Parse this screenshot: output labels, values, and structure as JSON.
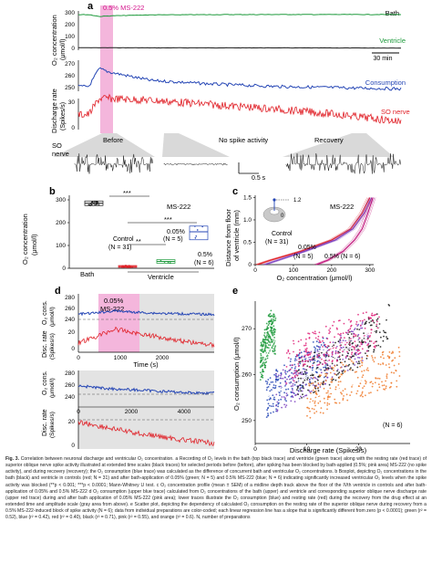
{
  "panel_a": {
    "letter": "a",
    "drug_label": "0.5% MS-222",
    "bath_label": "Bath",
    "ventricle_label": "Ventricle",
    "consumption_label": "Consumption",
    "nerve_label": "SO nerve",
    "ylabel_o2": "O₂ concentration",
    "ylabel_o2_unit": "(μmol/l)",
    "ylabel_rate": "Discharge rate",
    "ylabel_rate_unit": "(Spikes/s)",
    "scale_time": "30 min",
    "o2_ticks": [
      "300",
      "200",
      "100",
      "0"
    ],
    "cons_ticks": [
      "270",
      "260",
      "250"
    ],
    "rate_ticks": [
      "30",
      "0"
    ],
    "phase_before": "Before",
    "phase_none": "No spike activity",
    "phase_recovery": "Recovery",
    "so_label_1": "SO",
    "so_label_2": "nerve",
    "scale_trace": "0.5 s"
  },
  "panel_b": {
    "letter": "b",
    "ylabel": "O₂ concentration",
    "ylabel_unit": "(μmol/l)",
    "title": "MS-222",
    "ticks": [
      "300",
      "200",
      "100",
      "0"
    ],
    "sig_top": "***",
    "sig_mid": "***",
    "sig_low": "**",
    "control_label": "Control",
    "control_n": "(N = 31)",
    "p005_label": "0.05%",
    "p005_n": "(N = 5)",
    "p05_label": "0.5%",
    "p05_n": "(N = 6)",
    "x_bath": "Bath",
    "x_ventricle": "Ventricle"
  },
  "panel_c": {
    "letter": "c",
    "ylabel1": "Distance from floor",
    "ylabel2": "of ventricle (mm)",
    "title": "MS-222",
    "ticks_y": [
      "1.5",
      "1.0",
      "0.5",
      "0"
    ],
    "ticks_x": [
      "0",
      "100",
      "200",
      "300"
    ],
    "xlabel": "O₂ concentration (μmol/l)",
    "inset_dist": "1.2",
    "inset_zero": "0",
    "control_label": "Control",
    "control_n": "(N = 31)",
    "p005_label": "0.05%",
    "p005_n": "(N = 5)",
    "p05_label": "0.5% (N = 6)"
  },
  "panel_d": {
    "letter": "d",
    "top_drug1": "0.05%",
    "top_drug2": "MS-222",
    "ylabel_cons": "O₂ cons.",
    "ylabel_cons_unit": "(μmol/l)",
    "ylabel_disc": "Disc. rate",
    "ylabel_disc_unit": "(Spikes/s)",
    "cons_ticks": [
      "280",
      "260",
      "240"
    ],
    "disc_ticks": [
      "20",
      "0"
    ],
    "x_ticks_top": [
      "0",
      "1000",
      "2000"
    ],
    "xlabel": "Time (s)",
    "x_ticks_bottom": [
      "0",
      "2000",
      "4000"
    ]
  },
  "panel_e": {
    "letter": "e",
    "ylabel": "O₂ consumption (μmol/l)",
    "xlabel": "Discharge rate (Spikes/s)",
    "ticks_y": [
      "270",
      "260",
      "250"
    ],
    "ticks_x": [
      "0",
      "10",
      "20"
    ],
    "n_label": "(N = 6)"
  },
  "colors": {
    "bath": "#1a1a1a",
    "ventricle": "#1e9a3c",
    "consumption": "#2546b5",
    "nerve": "#e01f26",
    "drug": "#f4b6dc",
    "drug_text": "#d4148c",
    "p005": "#7b3fbf",
    "p05": "#c0137a",
    "gray": "#d9d9d9"
  },
  "chart_data": [
    {
      "type": "line",
      "panel": "a",
      "ylabel": "O₂ concentration (μmol/l)",
      "ylim": [
        0,
        320
      ],
      "series": [
        {
          "name": "Bath",
          "x_min": [
            -10,
            0,
            10,
            20,
            60,
            120,
            180,
            240,
            300
          ],
          "values": [
            300,
            300,
            300,
            300,
            301,
            301,
            301,
            302,
            302
          ]
        },
        {
          "name": "Ventricle",
          "x_min": [
            -10,
            0,
            10,
            20,
            60,
            120,
            180,
            240,
            300
          ],
          "values": [
            30,
            30,
            45,
            40,
            32,
            30,
            29,
            29,
            29
          ]
        }
      ]
    },
    {
      "type": "line",
      "panel": "a",
      "ylabel": "O₂ concentration (μmol/l)",
      "ylim": [
        248,
        274
      ],
      "series": [
        {
          "name": "Consumption",
          "x_min": [
            -10,
            0,
            10,
            20,
            60,
            120,
            180,
            240,
            300
          ],
          "values": [
            270,
            270,
            255,
            258,
            265,
            268,
            270,
            271,
            272
          ]
        }
      ]
    },
    {
      "type": "line",
      "panel": "a",
      "ylabel": "Discharge rate (Spikes/s)",
      "ylim": [
        0,
        35
      ],
      "series": [
        {
          "name": "SO nerve",
          "x_min": [
            -10,
            0,
            10,
            20,
            60,
            120,
            180,
            240,
            300
          ],
          "values": [
            18,
            18,
            0,
            0,
            2,
            7,
            12,
            18,
            26
          ]
        }
      ]
    },
    {
      "type": "bar",
      "panel": "b",
      "title": "MS-222",
      "ylabel": "O₂ concentration (μmol/l)",
      "ylim": [
        0,
        320
      ],
      "categories": [
        "Bath",
        "Ventricle Control",
        "Ventricle 0.05%",
        "Ventricle 0.5%"
      ],
      "series": [
        {
          "name": "median",
          "values": [
            285,
            8,
            30,
            160
          ]
        },
        {
          "name": "q1",
          "values": [
            275,
            4,
            22,
            125
          ]
        },
        {
          "name": "q3",
          "values": [
            295,
            12,
            38,
            185
          ]
        }
      ]
    },
    {
      "type": "line",
      "panel": "c",
      "title": "MS-222",
      "xlabel": "O₂ concentration (μmol/l)",
      "ylabel": "Distance from floor of ventricle (mm)",
      "xlim": [
        0,
        310
      ],
      "ylim": [
        0,
        1.55
      ],
      "series": [
        {
          "name": "Control",
          "x": [
            5,
            40,
            120,
            200,
            250,
            280,
            300
          ],
          "values": [
            0,
            0.1,
            0.3,
            0.55,
            0.8,
            1.15,
            1.5
          ]
        },
        {
          "name": "0.05%",
          "x": [
            25,
            60,
            130,
            210,
            255,
            285,
            305
          ],
          "values": [
            0,
            0.1,
            0.3,
            0.55,
            0.8,
            1.15,
            1.5
          ]
        },
        {
          "name": "0.5%",
          "x": [
            160,
            190,
            230,
            260,
            280,
            295,
            308
          ],
          "values": [
            0,
            0.1,
            0.3,
            0.55,
            0.8,
            1.15,
            1.5
          ]
        }
      ]
    },
    {
      "type": "line",
      "panel": "d",
      "xlabel": "Time (s)",
      "series": [
        {
          "name": "O₂ cons. (0.05% MS-222)",
          "x": [
            0,
            300,
            800,
            1200,
            1800,
            2400,
            3000
          ],
          "values": [
            273,
            272,
            268,
            270,
            272,
            273,
            274
          ]
        },
        {
          "name": "Disc. rate (0.05% MS-222)",
          "x": [
            0,
            300,
            800,
            1200,
            1800,
            2400,
            3000
          ],
          "values": [
            14,
            10,
            2,
            5,
            9,
            13,
            16
          ]
        },
        {
          "name": "O₂ cons. (recovery)",
          "x": [
            0,
            1000,
            2000,
            3000,
            4000,
            5000
          ],
          "values": [
            262,
            266,
            268,
            270,
            272,
            273
          ]
        },
        {
          "name": "Disc. rate (recovery)",
          "x": [
            0,
            1000,
            2000,
            3000,
            4000,
            5000
          ],
          "values": [
            3,
            7,
            11,
            14,
            17,
            19
          ]
        }
      ]
    },
    {
      "type": "scatter",
      "panel": "e",
      "xlabel": "Discharge rate (Spikes/s)",
      "ylabel": "O₂ consumption (μmol/l)",
      "xlim": [
        0,
        30
      ],
      "ylim": [
        245,
        276
      ],
      "series": [
        {
          "name": "green",
          "x": [
            1,
            2,
            3,
            4
          ],
          "values": [
            262,
            266,
            270,
            268
          ]
        },
        {
          "name": "blue",
          "x": [
            2,
            6,
            10,
            14
          ],
          "values": [
            255,
            258,
            262,
            264
          ]
        },
        {
          "name": "violet",
          "x": [
            4,
            10,
            16,
            22
          ],
          "values": [
            256,
            260,
            264,
            268
          ]
        },
        {
          "name": "black",
          "x": [
            8,
            14,
            20,
            26
          ],
          "values": [
            258,
            262,
            266,
            272
          ]
        },
        {
          "name": "pink",
          "x": [
            6,
            12,
            18,
            24
          ],
          "values": [
            262,
            266,
            268,
            270
          ]
        },
        {
          "name": "orange",
          "x": [
            10,
            16,
            22,
            28
          ],
          "values": [
            254,
            258,
            260,
            262
          ]
        }
      ]
    }
  ],
  "caption": {
    "head": "Fig. 3.",
    "text": " Correlation between neuronal discharge and ventricular O₂ concentration. a Recording of O₂ levels in the bath (top black trace) and ventricle (green trace) along with the resting rate (red trace) of superior oblique nerve spike activity illustrated at extended time scales (black traces) for selected periods before (before), after spiking has been blocked by bath-applied (0.5%; pink area) MS-222 (no spike activity), and during recovery (recovery); the O₂ consumption (blue trace) was calculated as the difference of concurrent bath and ventricular O₂ concentrations. b Boxplot, depicting O₂ concentrations in the bath (black) and ventricle in controls (red; N = 31) and after bath-application of 0.05% (green; N = 5) and 0.5% MS-222 (blue; N = 6) indicating significantly increased ventricular O₂ levels when the spike activity was blocked (**p < 0.001; ***p < 0.0001; Mann-Whitney U test. c O₂ concentration profile (mean ± SEM) of a midline depth track above the floor of the IVth ventricle in controls and after bath-application of 0.05% and 0.5% MS-222 d O₂ consumption (upper blue trace) calculated from O₂ concentrations of the bath (upper) and ventricle and corresponding superior oblique nerve discharge rate (upper red trace) during and after bath application of 0.05% MS-222 (pink area); lower traces illustrate the O₂ consumption (blue) and resting rate (red) during the recovery from the drug effect at an extended time and amplitude scale (gray area from above). e Scatter plot, depicting the dependency of calculated O₂ consumption on the resting rate of the superior oblique nerve during recovery from a 0.5% MS-222-induced block of spike activity (N = 6); data from individual preparations are color-coded; each linear regression line has a slope that is significantly different from zero (p < 0.0001); green (r² = 0.52), blue (r² = 0.42), red (r² = 0.40), black (r² = 0.71), pink (r² = 0.55), and orange (r² = 0.6). N, number of preparations"
  }
}
